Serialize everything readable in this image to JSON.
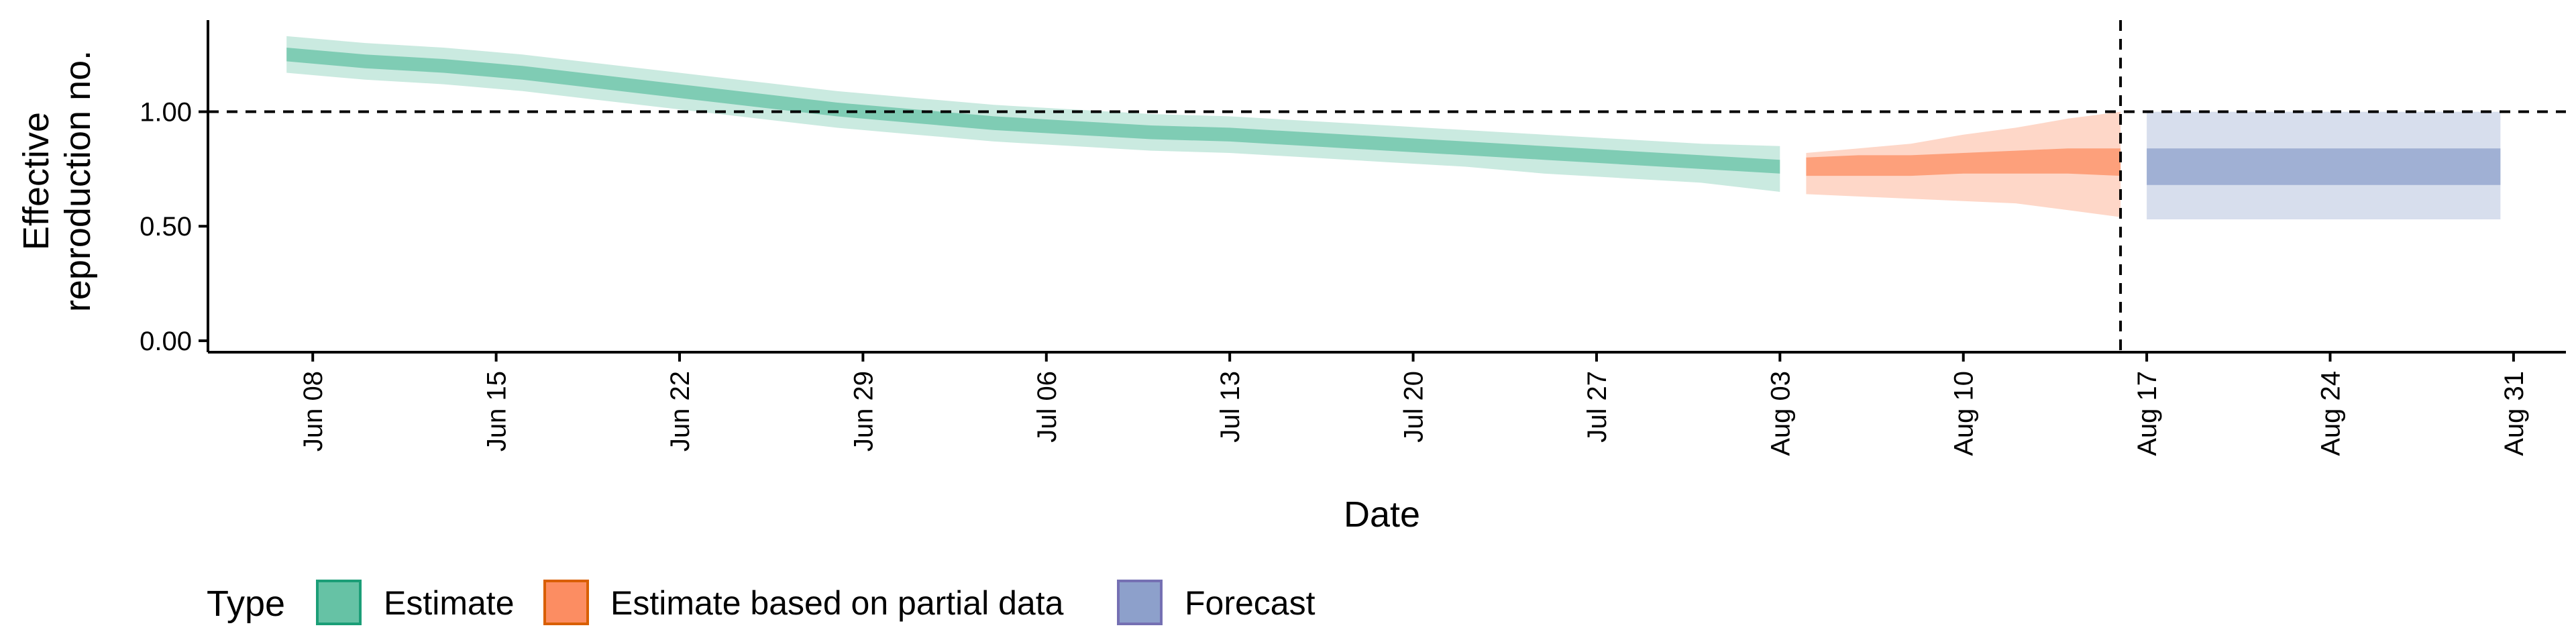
{
  "chart_data": {
    "type": "area",
    "xlabel": "Date",
    "ylabel_lines": [
      "Effective",
      "reproduction no."
    ],
    "x_range": [
      "2020-06-04",
      "2020-09-02"
    ],
    "ylim": [
      -0.05,
      1.4
    ],
    "y_ticks": [
      0.0,
      0.5,
      1.0
    ],
    "y_tick_labels": [
      "0.00",
      "0.50",
      "1.00"
    ],
    "x_ticks": [
      "2020-06-08",
      "2020-06-15",
      "2020-06-22",
      "2020-06-29",
      "2020-07-06",
      "2020-07-13",
      "2020-07-20",
      "2020-07-27",
      "2020-08-03",
      "2020-08-10",
      "2020-08-17",
      "2020-08-24",
      "2020-08-31"
    ],
    "x_tick_labels": [
      "Jun 08",
      "Jun 15",
      "Jun 22",
      "Jun 29",
      "Jul 06",
      "Jul 13",
      "Jul 20",
      "Jul 27",
      "Aug 03",
      "Aug 10",
      "Aug 17",
      "Aug 24",
      "Aug 31"
    ],
    "reference_line_y": 1.0,
    "reference_line_date": "2020-08-16",
    "grid": false,
    "legend": {
      "title": "Type",
      "position": "bottom-left",
      "items": [
        {
          "label": "Estimate",
          "fill": "#66C2A5",
          "stroke": "#1B9E77"
        },
        {
          "label": "Estimate based on partial data",
          "fill": "#FC8D62",
          "stroke": "#D95F02"
        },
        {
          "label": "Forecast",
          "fill": "#8DA0CB",
          "stroke": "#7570B3"
        }
      ]
    },
    "series": [
      {
        "name": "Estimate",
        "color": "#66C2A5",
        "x": [
          "2020-06-07",
          "2020-06-10",
          "2020-06-13",
          "2020-06-16",
          "2020-06-19",
          "2020-06-22",
          "2020-06-25",
          "2020-06-28",
          "2020-07-01",
          "2020-07-04",
          "2020-07-07",
          "2020-07-10",
          "2020-07-13",
          "2020-07-16",
          "2020-07-19",
          "2020-07-22",
          "2020-07-25",
          "2020-07-28",
          "2020-07-31",
          "2020-08-03"
        ],
        "median": [
          1.25,
          1.22,
          1.2,
          1.17,
          1.13,
          1.09,
          1.05,
          1.01,
          0.98,
          0.95,
          0.93,
          0.91,
          0.9,
          0.88,
          0.86,
          0.84,
          0.82,
          0.8,
          0.78,
          0.76
        ],
        "lower_50": [
          1.22,
          1.19,
          1.17,
          1.14,
          1.1,
          1.06,
          1.02,
          0.98,
          0.95,
          0.92,
          0.9,
          0.88,
          0.87,
          0.85,
          0.83,
          0.81,
          0.79,
          0.77,
          0.75,
          0.73
        ],
        "upper_50": [
          1.28,
          1.25,
          1.23,
          1.2,
          1.16,
          1.12,
          1.08,
          1.04,
          1.01,
          0.98,
          0.96,
          0.94,
          0.93,
          0.91,
          0.89,
          0.87,
          0.85,
          0.83,
          0.81,
          0.79
        ],
        "lower_90": [
          1.17,
          1.14,
          1.12,
          1.09,
          1.05,
          1.01,
          0.97,
          0.93,
          0.9,
          0.87,
          0.85,
          0.83,
          0.82,
          0.8,
          0.78,
          0.76,
          0.73,
          0.71,
          0.69,
          0.65
        ],
        "upper_90": [
          1.33,
          1.3,
          1.28,
          1.25,
          1.21,
          1.17,
          1.13,
          1.09,
          1.06,
          1.03,
          1.01,
          0.99,
          0.98,
          0.96,
          0.94,
          0.92,
          0.9,
          0.88,
          0.86,
          0.85
        ]
      },
      {
        "name": "Estimate based on partial data",
        "color": "#FC8D62",
        "x": [
          "2020-08-04",
          "2020-08-06",
          "2020-08-08",
          "2020-08-10",
          "2020-08-12",
          "2020-08-14",
          "2020-08-16"
        ],
        "median": [
          0.76,
          0.76,
          0.77,
          0.78,
          0.79,
          0.8,
          0.8
        ],
        "lower_50": [
          0.72,
          0.72,
          0.72,
          0.73,
          0.73,
          0.73,
          0.72
        ],
        "upper_50": [
          0.8,
          0.81,
          0.81,
          0.82,
          0.83,
          0.84,
          0.84
        ],
        "lower_90": [
          0.64,
          0.63,
          0.62,
          0.61,
          0.6,
          0.57,
          0.54
        ],
        "upper_90": [
          0.82,
          0.84,
          0.86,
          0.9,
          0.93,
          0.97,
          1.0
        ]
      },
      {
        "name": "Forecast",
        "color": "#8DA0CB",
        "x": [
          "2020-08-17",
          "2020-08-30"
        ],
        "median": [
          0.76,
          0.76
        ],
        "lower_50": [
          0.68,
          0.68
        ],
        "upper_50": [
          0.84,
          0.84
        ],
        "lower_90": [
          0.53,
          0.53
        ],
        "upper_90": [
          1.0,
          1.0
        ]
      }
    ]
  }
}
